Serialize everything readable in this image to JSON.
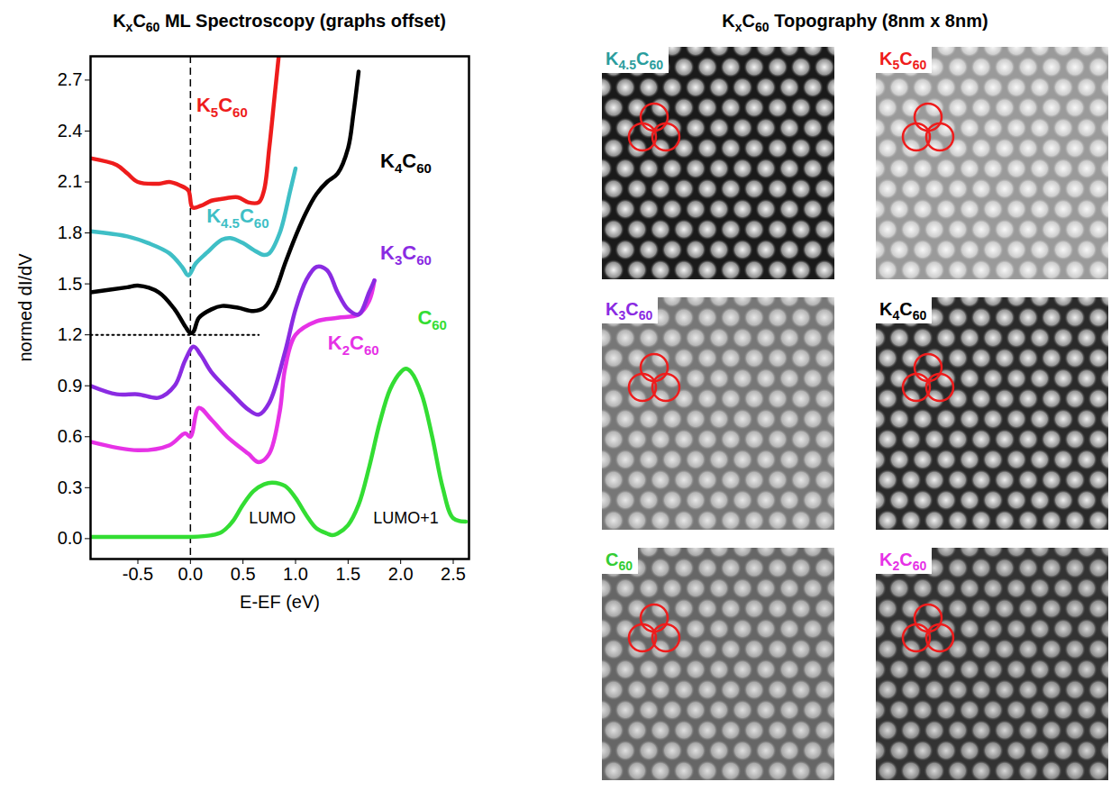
{
  "chart_data": {
    "type": "line",
    "title": "KxC60 ML Spectroscopy (graphs offset)",
    "x_label": "E-EF (eV)",
    "y_label": "normed dI/dV",
    "xlim": [
      -0.95,
      2.65
    ],
    "ylim": [
      -0.12,
      2.84
    ],
    "xticks": [
      -0.5,
      {
        "value": 0,
        "label": "0.0"
      },
      0.5,
      {
        "value": 1,
        "label": "1.0"
      },
      1.5,
      {
        "value": 2,
        "label": "2.0"
      },
      2.5
    ],
    "yticks": [
      {
        "value": 0,
        "label": "0.0"
      },
      0.3,
      0.6,
      0.9,
      1.2,
      1.5,
      1.8,
      2.1,
      2.4,
      2.7
    ],
    "grid": false,
    "series": [
      {
        "name": "C60",
        "color": "#33dd33",
        "label_at": [
          2.3,
          1.3
        ],
        "x": [
          -0.95,
          -0.5,
          -0.2,
          0,
          0.2,
          0.3,
          0.4,
          0.5,
          0.6,
          0.7,
          0.78,
          0.9,
          1.0,
          1.1,
          1.2,
          1.3,
          1.35,
          1.4,
          1.5,
          1.6,
          1.7,
          1.8,
          1.9,
          2.0,
          2.05,
          2.1,
          2.2,
          2.3,
          2.4,
          2.5,
          2.62
        ],
        "values": [
          0.01,
          0.01,
          0.01,
          0.01,
          0.02,
          0.04,
          0.1,
          0.2,
          0.28,
          0.32,
          0.33,
          0.31,
          0.24,
          0.14,
          0.06,
          0.03,
          0.02,
          0.03,
          0.08,
          0.2,
          0.42,
          0.68,
          0.88,
          0.98,
          1.0,
          0.98,
          0.85,
          0.6,
          0.3,
          0.12,
          0.1
        ]
      },
      {
        "name": "K2C60",
        "color": "#e632e6",
        "label_at": [
          1.55,
          1.15
        ],
        "x": [
          -0.95,
          -0.5,
          -0.2,
          -0.05,
          0,
          0.08,
          0.2,
          0.35,
          0.55,
          0.65,
          0.75,
          0.85,
          0.9,
          1.0,
          1.2,
          1.4,
          1.6,
          1.7,
          1.75
        ],
        "values": [
          0.57,
          0.52,
          0.55,
          0.62,
          0.6,
          0.77,
          0.7,
          0.6,
          0.5,
          0.45,
          0.5,
          0.75,
          1.0,
          1.2,
          1.28,
          1.3,
          1.32,
          1.4,
          1.52
        ]
      },
      {
        "name": "K3C60",
        "color": "#8a2be2",
        "label_at": [
          2.05,
          1.68
        ],
        "x": [
          -0.95,
          -0.7,
          -0.5,
          -0.3,
          -0.15,
          -0.05,
          0.03,
          0.1,
          0.2,
          0.4,
          0.55,
          0.65,
          0.75,
          0.9,
          1.0,
          1.1,
          1.2,
          1.3,
          1.4,
          1.5,
          1.6,
          1.7,
          1.75
        ],
        "values": [
          0.9,
          0.85,
          0.85,
          0.83,
          0.9,
          1.05,
          1.13,
          1.08,
          0.98,
          0.85,
          0.76,
          0.73,
          0.8,
          1.1,
          1.35,
          1.52,
          1.6,
          1.58,
          1.45,
          1.35,
          1.32,
          1.45,
          1.52
        ]
      },
      {
        "name": "K4C60",
        "color": "#000000",
        "label_at": [
          2.05,
          2.22
        ],
        "x": [
          -0.95,
          -0.6,
          -0.5,
          -0.3,
          -0.15,
          -0.05,
          0,
          0.03,
          0.08,
          0.2,
          0.3,
          0.45,
          0.6,
          0.7,
          0.8,
          0.9,
          1.0,
          1.1,
          1.2,
          1.3,
          1.4,
          1.5,
          1.55,
          1.6
        ],
        "values": [
          1.45,
          1.48,
          1.49,
          1.45,
          1.35,
          1.25,
          1.21,
          1.22,
          1.3,
          1.35,
          1.37,
          1.36,
          1.34,
          1.36,
          1.45,
          1.62,
          1.78,
          1.92,
          2.03,
          2.1,
          2.15,
          2.3,
          2.5,
          2.75
        ]
      },
      {
        "name": "K4.5C60",
        "color": "#3fbfc6",
        "label_at": [
          0.45,
          1.9
        ],
        "x": [
          -0.95,
          -0.6,
          -0.4,
          -0.2,
          -0.08,
          -0.02,
          0.05,
          0.15,
          0.3,
          0.38,
          0.5,
          0.6,
          0.7,
          0.75,
          0.85,
          0.95,
          1.0
        ],
        "values": [
          1.81,
          1.78,
          1.74,
          1.68,
          1.6,
          1.55,
          1.62,
          1.68,
          1.76,
          1.77,
          1.74,
          1.7,
          1.67,
          1.68,
          1.8,
          2.05,
          2.18
        ]
      },
      {
        "name": "K5C60",
        "color": "#ee1c1c",
        "label_at": [
          0.3,
          2.55
        ],
        "x": [
          -0.95,
          -0.7,
          -0.6,
          -0.5,
          -0.3,
          -0.2,
          -0.1,
          -0.02,
          0.02,
          0.1,
          0.2,
          0.3,
          0.45,
          0.55,
          0.65,
          0.7,
          0.75,
          0.8,
          0.84
        ],
        "values": [
          2.24,
          2.2,
          2.15,
          2.1,
          2.09,
          2.1,
          2.08,
          2.05,
          1.95,
          1.96,
          1.99,
          2.0,
          2.01,
          1.98,
          1.98,
          2.05,
          2.3,
          2.6,
          2.84
        ]
      }
    ],
    "annotations": [
      {
        "text": "LUMO",
        "x": 0.78,
        "y": 0.12
      },
      {
        "text": "LUMO+1",
        "x": 2.05,
        "y": 0.12
      }
    ],
    "vline": {
      "x": 0,
      "line_style": "dashed"
    },
    "hline": {
      "y": 1.2,
      "x": [
        -0.95,
        0.65
      ],
      "line_style": "dotted"
    }
  },
  "topography": {
    "title": "KxC60 Topography (8nm x 8nm)",
    "panels": [
      {
        "label": "K4.5C60",
        "color": "#2a9d9d"
      },
      {
        "label": "K5C60",
        "color": "#ee1c1c"
      },
      {
        "label": "K3C60",
        "color": "#8a2be2"
      },
      {
        "label": "K4C60",
        "color": "#000000"
      },
      {
        "label": "C60",
        "color": "#33cc33"
      },
      {
        "label": "K2C60",
        "color": "#e632e6"
      }
    ]
  }
}
